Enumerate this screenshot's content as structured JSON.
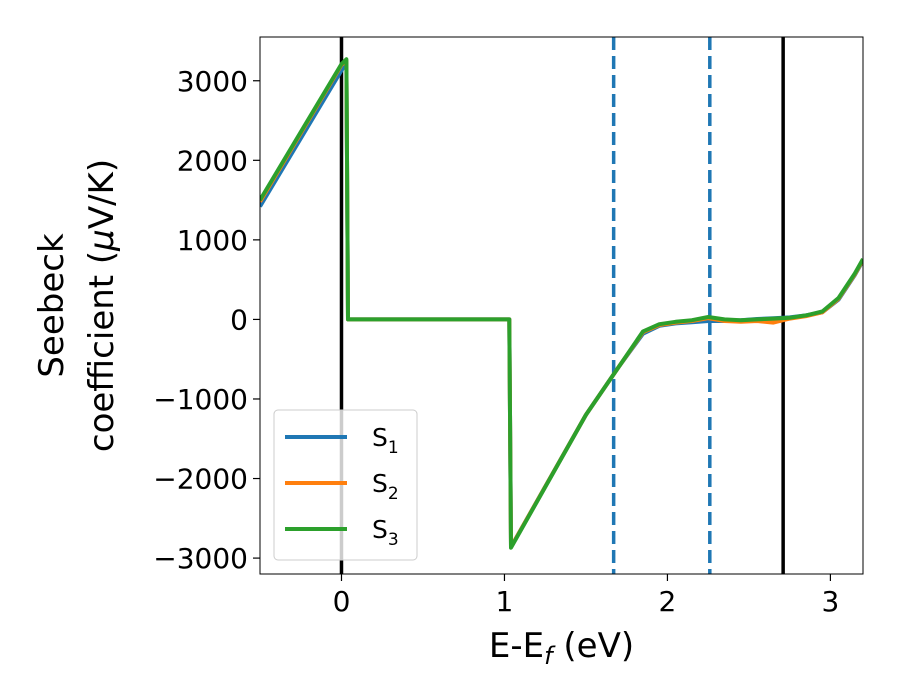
{
  "chart_data": {
    "type": "line",
    "xlabel": "E-E",
    "xlabel_sub": "f",
    "xlabel_unit": " (eV)",
    "ylabel_line1": "Seebeck",
    "ylabel_line2": "coefficient  (",
    "ylabel_mu": "μ",
    "ylabel_unit": "V/K)",
    "xlim": [
      -0.5,
      3.2
    ],
    "ylim": [
      -3200,
      3550
    ],
    "xticks": [
      0,
      1,
      2,
      3
    ],
    "xtick_labels": [
      "0",
      "1",
      "2",
      "3"
    ],
    "yticks": [
      -3000,
      -2000,
      -1000,
      0,
      1000,
      2000,
      3000
    ],
    "ytick_labels": [
      "−3000",
      "−2000",
      "−1000",
      "0",
      "1000",
      "2000",
      "3000"
    ],
    "grid": false,
    "legend_position": "lower-left",
    "series": [
      {
        "name": "S",
        "sub": "1",
        "color": "#1f77b4",
        "x": [
          -0.5,
          0.0,
          0.03,
          0.04,
          1.03,
          1.04,
          1.5,
          1.7,
          1.85,
          1.95,
          2.05,
          2.15,
          2.25,
          2.35,
          2.45,
          2.55,
          2.65,
          2.75,
          2.85,
          2.95,
          3.05,
          3.15,
          3.2
        ],
        "y": [
          1420,
          3130,
          3220,
          0,
          0,
          -2860,
          -1200,
          -600,
          -180,
          -80,
          -50,
          -35,
          -20,
          -20,
          -10,
          5,
          15,
          25,
          50,
          90,
          250,
          560,
          740
        ]
      },
      {
        "name": "S",
        "sub": "2",
        "color": "#ff7f0e",
        "x": [
          -0.5,
          0.0,
          0.03,
          0.04,
          1.03,
          1.04,
          1.5,
          1.7,
          1.85,
          1.95,
          2.05,
          2.15,
          2.25,
          2.35,
          2.45,
          2.55,
          2.65,
          2.75,
          2.85,
          2.95,
          3.05,
          3.15,
          3.2
        ],
        "y": [
          1480,
          3200,
          3250,
          0,
          0,
          -2860,
          -1200,
          -600,
          -160,
          -70,
          -40,
          -20,
          15,
          -20,
          -30,
          -20,
          -40,
          10,
          40,
          90,
          260,
          570,
          750
        ]
      },
      {
        "name": "S",
        "sub": "3",
        "color": "#2ca02c",
        "x": [
          -0.5,
          0.0,
          0.03,
          0.04,
          1.03,
          1.04,
          1.5,
          1.7,
          1.85,
          1.95,
          2.05,
          2.15,
          2.25,
          2.35,
          2.45,
          2.55,
          2.65,
          2.75,
          2.85,
          2.95,
          3.05,
          3.15,
          3.2
        ],
        "y": [
          1500,
          3210,
          3270,
          0,
          0,
          -2870,
          -1200,
          -600,
          -150,
          -60,
          -30,
          -10,
          30,
          0,
          -10,
          0,
          10,
          20,
          50,
          100,
          270,
          580,
          760
        ]
      }
    ],
    "vlines": [
      {
        "x": 0.0,
        "style": "solid",
        "color": "#000000"
      },
      {
        "x": 1.67,
        "style": "dashed",
        "color": "#1f77b4"
      },
      {
        "x": 2.26,
        "style": "dashed",
        "color": "#1f77b4"
      },
      {
        "x": 2.71,
        "style": "solid",
        "color": "#000000"
      }
    ]
  }
}
